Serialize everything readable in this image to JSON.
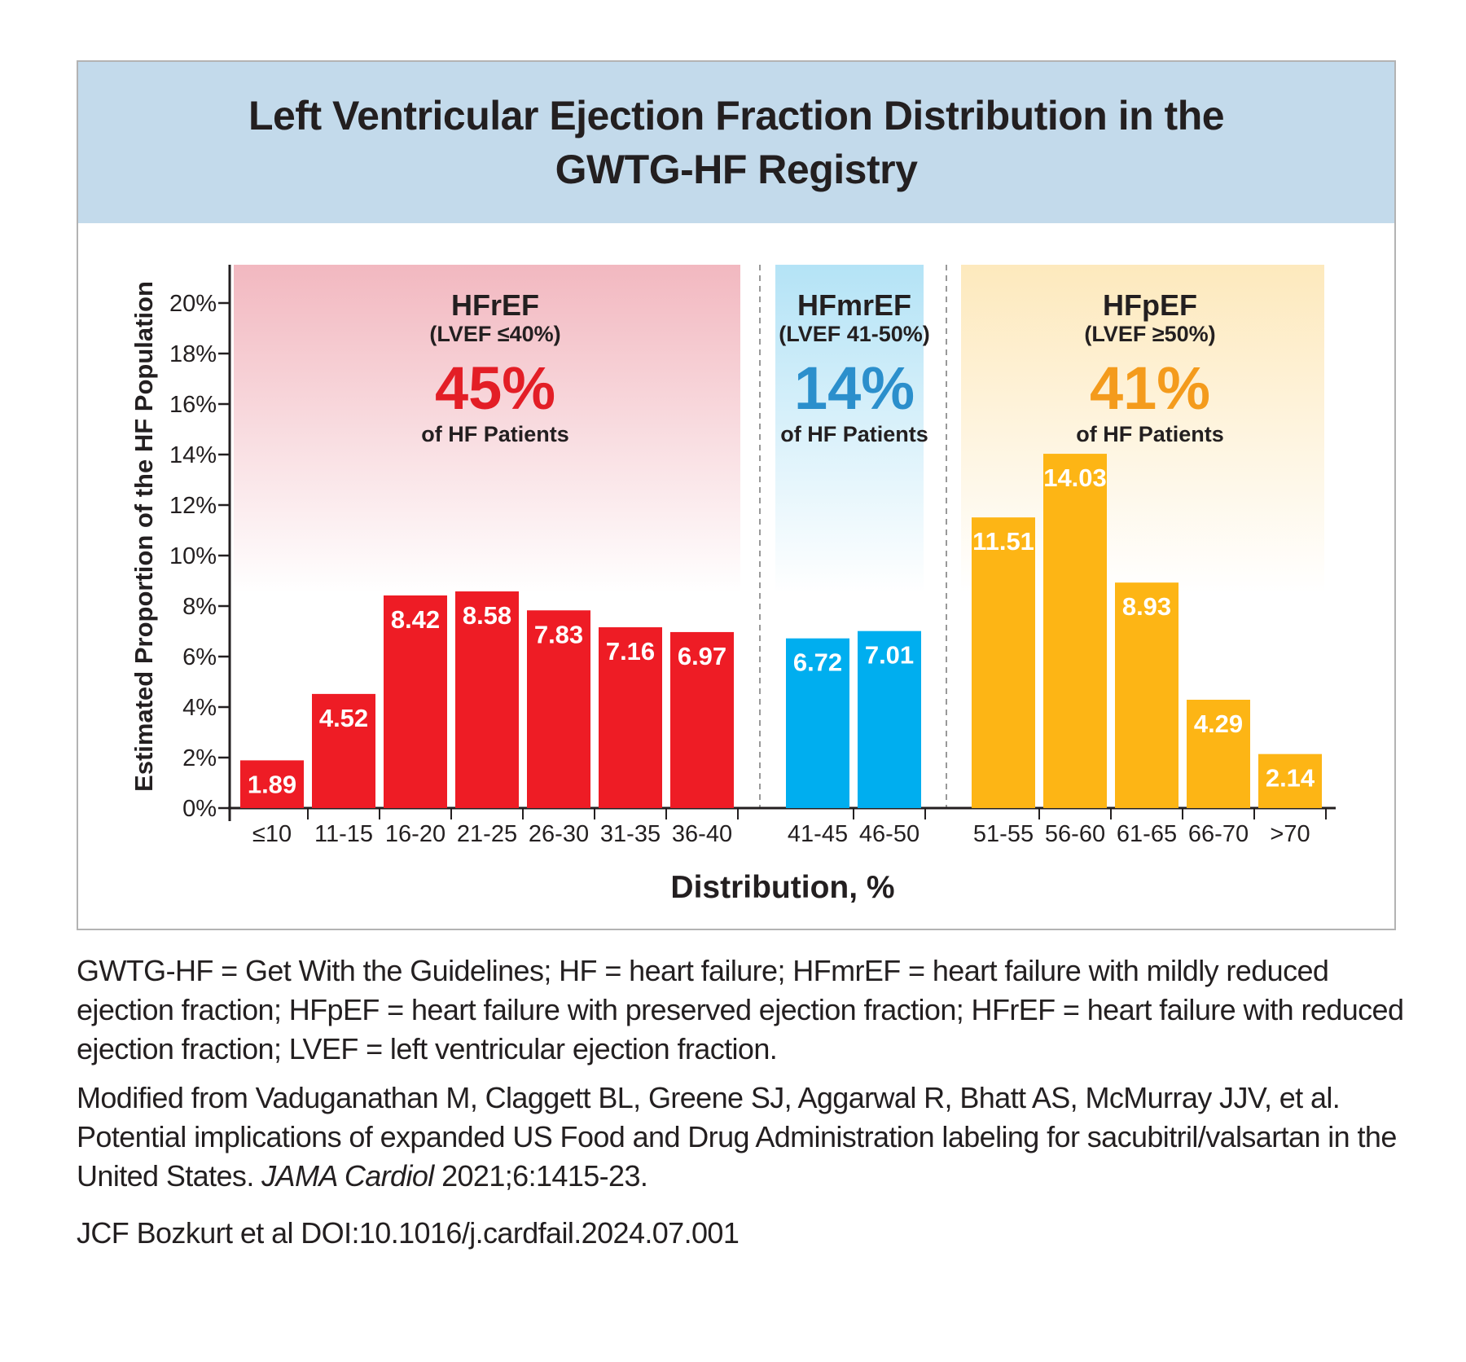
{
  "chart_data": {
    "type": "bar",
    "title": "Left Ventricular Ejection Fraction Distribution in the GWTG-HF Registry",
    "xlabel": "Distribution, %",
    "ylabel": "Estimated Proportion of the HF Population",
    "ylim": [
      0,
      21
    ],
    "y_ticks": [
      0,
      2,
      4,
      6,
      8,
      10,
      12,
      14,
      16,
      18,
      20
    ],
    "y_tick_suffix": "%",
    "grid": false,
    "groups": [
      {
        "name": "HFrEF",
        "criteria": "(LVEF ≤40%)",
        "share": "45%",
        "share_label": "of HF Patients",
        "color": "#ee1c25",
        "share_color": "#e31e26",
        "band_color": "#f2b8c0",
        "categories": [
          "≤10",
          "11-15",
          "16-20",
          "21-25",
          "26-30",
          "31-35",
          "36-40"
        ],
        "values": [
          1.89,
          4.52,
          8.42,
          8.58,
          7.83,
          7.16,
          6.97
        ],
        "value_labels": [
          "1.89",
          "4.52",
          "8.42",
          "8.58",
          "7.83",
          "7.16",
          "6.97"
        ]
      },
      {
        "name": "HFmrEF",
        "criteria": "(LVEF 41-50%)",
        "share": "14%",
        "share_label": "of HF Patients",
        "color": "#00aeef",
        "share_color": "#2b8fcc",
        "band_color": "#b4e3f6",
        "categories": [
          "41-45",
          "46-50"
        ],
        "values": [
          6.72,
          7.01
        ],
        "value_labels": [
          "6.72",
          "7.01"
        ]
      },
      {
        "name": "HFpEF",
        "criteria": "(LVEF ≥50%)",
        "share": "41%",
        "share_label": "of HF Patients",
        "color": "#fdb515",
        "share_color": "#f49b1c",
        "band_color": "#fde9bd",
        "categories": [
          "51-55",
          "56-60",
          "61-65",
          "66-70",
          ">70"
        ],
        "values": [
          11.51,
          14.03,
          8.93,
          4.29,
          2.14
        ],
        "value_labels": [
          "11.51",
          "14.03",
          "8.93",
          "4.29",
          "2.14"
        ]
      }
    ]
  },
  "caption": {
    "abbreviations": "GWTG-HF = Get With the Guidelines; HF = heart failure; HFmrEF = heart failure with mildly reduced ejection fraction; HFpEF = heart failure with preserved ejection fraction; HFrEF = heart failure with reduced ejection fraction; LVEF = left ventricular ejection fraction.",
    "source_prefix": "Modified from Vaduganathan M, Claggett BL, Greene SJ, Aggarwal R, Bhatt AS, McMurray JJV, et al. Potential implications of expanded US Food and Drug Administration labeling for sacubitril/valsartan in the United States. ",
    "source_journal": "JAMA Cardiol",
    "source_suffix": " 2021;6:1415-23.",
    "citation": "JCF Bozkurt et al  DOI:10.1016/j.cardfail.2024.07.001"
  }
}
